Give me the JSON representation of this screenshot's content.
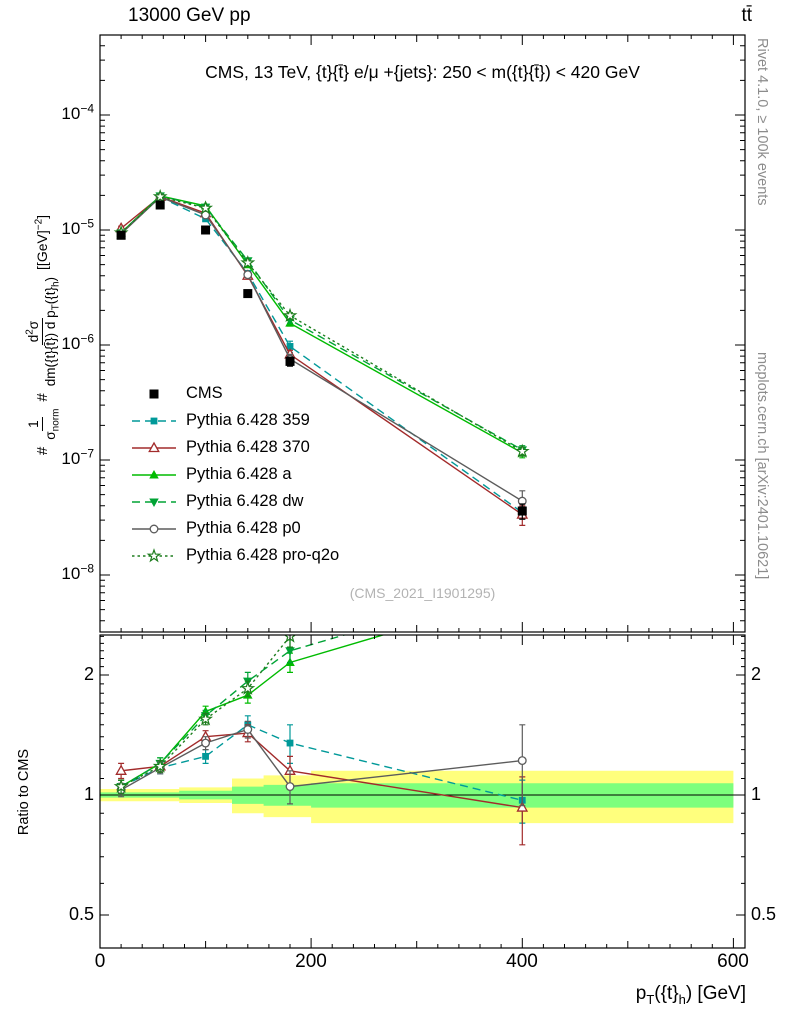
{
  "header": {
    "left": "13000 GeV pp",
    "right": "tt̄"
  },
  "panel_title": "CMS, 13 TeV, {t}{t̄} e/μ +{jets}: 250 < m({t}{t̄}) < 420 GeV",
  "watermark": "(CMS_2021_I1901295)",
  "side_notes": {
    "top": "Rivet 4.1.0, ≥ 100k events",
    "bottom": "mcplots.cern.ch [arXiv:2401.10621]"
  },
  "axes": {
    "ratio_label": "Ratio to CMS",
    "x_title": {
      "p": "p",
      "sub_T": "T",
      "mid": "({t}",
      "sub_h": "h",
      "end": ") [GeV]"
    },
    "y_title": {
      "hash1": "#",
      "f1_num": "1",
      "f1_den_sym": "σ",
      "f1_den_sub": "norm",
      "hash2": "#",
      "f2_num_a": "d",
      "f2_num_sup": "2",
      "f2_num_b": "σ",
      "f2_den_a": "dm({t}{t̄}) d p",
      "f2_den_sub1": "T",
      "f2_den_b": "({t}",
      "f2_den_sub2": "h",
      "f2_den_c": ")",
      "units_a": "[[GeV]",
      "units_sup": "−2",
      "units_b": "]"
    }
  },
  "chart_data": {
    "type": "line",
    "title": "CMS, 13 TeV, {t}{t̄} e/μ +{jets}: 250 < m({t}{t̄}) < 420 GeV",
    "xlabel": "pT({t}h) [GeV]",
    "ylabel": "1/σ_norm d²σ/dm({t}{t̄}) d pT({t}h) [[GeV]−2]",
    "x": [
      20,
      57,
      100,
      140,
      180,
      400
    ],
    "x_edges": [
      0,
      40,
      75,
      125,
      155,
      200,
      600
    ],
    "x_ticks": [
      0,
      200,
      400,
      600
    ],
    "xlim": [
      0,
      611
    ],
    "main_y_tick_exponents": [
      -4,
      -5,
      -6,
      -7,
      -8
    ],
    "ratio_y_ticks": [
      0.5,
      1,
      2
    ],
    "cms": {
      "label": "CMS",
      "color": "#000000",
      "values": [
        9e-06,
        1.65e-05,
        1e-05,
        2.8e-06,
        7.2e-07,
        3.6e-08
      ],
      "rel_err": [
        0.05,
        0.04,
        0.05,
        0.07,
        0.09,
        0.15
      ]
    },
    "series": [
      {
        "label": "Pythia 6.428 359",
        "color": "#009999",
        "line": "dashed",
        "marker": "square-filled",
        "ratio": [
          1.05,
          1.17,
          1.25,
          1.5,
          1.35,
          0.97
        ],
        "ratio_err": [
          0.04,
          0.04,
          0.05,
          0.08,
          0.15,
          0.12
        ]
      },
      {
        "label": "Pythia 6.428 370",
        "color": "#a22b2b",
        "line": "solid",
        "marker": "triangle-open",
        "ratio": [
          1.15,
          1.18,
          1.4,
          1.43,
          1.15,
          0.93
        ],
        "ratio_err": [
          0.05,
          0.04,
          0.05,
          0.07,
          0.1,
          0.18
        ]
      },
      {
        "label": "Pythia 6.428 a",
        "color": "#00bb00",
        "line": "solid",
        "marker": "triangle-filled",
        "ratio": [
          1.05,
          1.2,
          1.62,
          1.78,
          2.15,
          3.2
        ],
        "ratio_err": [
          0.04,
          0.04,
          0.05,
          0.08,
          0.12,
          0.3
        ]
      },
      {
        "label": "Pythia 6.428 dw",
        "color": "#00a335",
        "line": "dashed",
        "marker": "triangle-down-filled",
        "ratio": [
          1.05,
          1.2,
          1.58,
          1.93,
          2.3,
          3.4
        ],
        "ratio_err": [
          0.04,
          0.04,
          0.05,
          0.1,
          0.15,
          0.3
        ]
      },
      {
        "label": "Pythia 6.428 p0",
        "color": "#5c5c5c",
        "line": "solid",
        "marker": "circle-open",
        "ratio": [
          1.03,
          1.17,
          1.35,
          1.46,
          1.05,
          1.22
        ],
        "ratio_err": [
          0.04,
          0.04,
          0.05,
          0.07,
          0.1,
          0.28
        ]
      },
      {
        "label": "Pythia 6.428 pro-q2o",
        "color": "#1e7d1e",
        "line": "dotted",
        "marker": "star-open",
        "ratio": [
          1.05,
          1.18,
          1.55,
          1.85,
          2.5,
          3.3
        ],
        "ratio_err": [
          0.04,
          0.04,
          0.05,
          0.08,
          0.15,
          0.3
        ]
      }
    ],
    "bands": {
      "yellow": {
        "color": "#ffff7d",
        "lo": [
          0.965,
          0.965,
          0.955,
          0.9,
          0.88,
          0.85
        ],
        "hi": [
          1.035,
          1.035,
          1.045,
          1.1,
          1.12,
          1.15
        ]
      },
      "green": {
        "color": "#7dff7d",
        "lo": [
          0.985,
          0.985,
          0.975,
          0.95,
          0.94,
          0.93
        ],
        "hi": [
          1.015,
          1.015,
          1.025,
          1.05,
          1.06,
          1.07
        ]
      }
    }
  }
}
